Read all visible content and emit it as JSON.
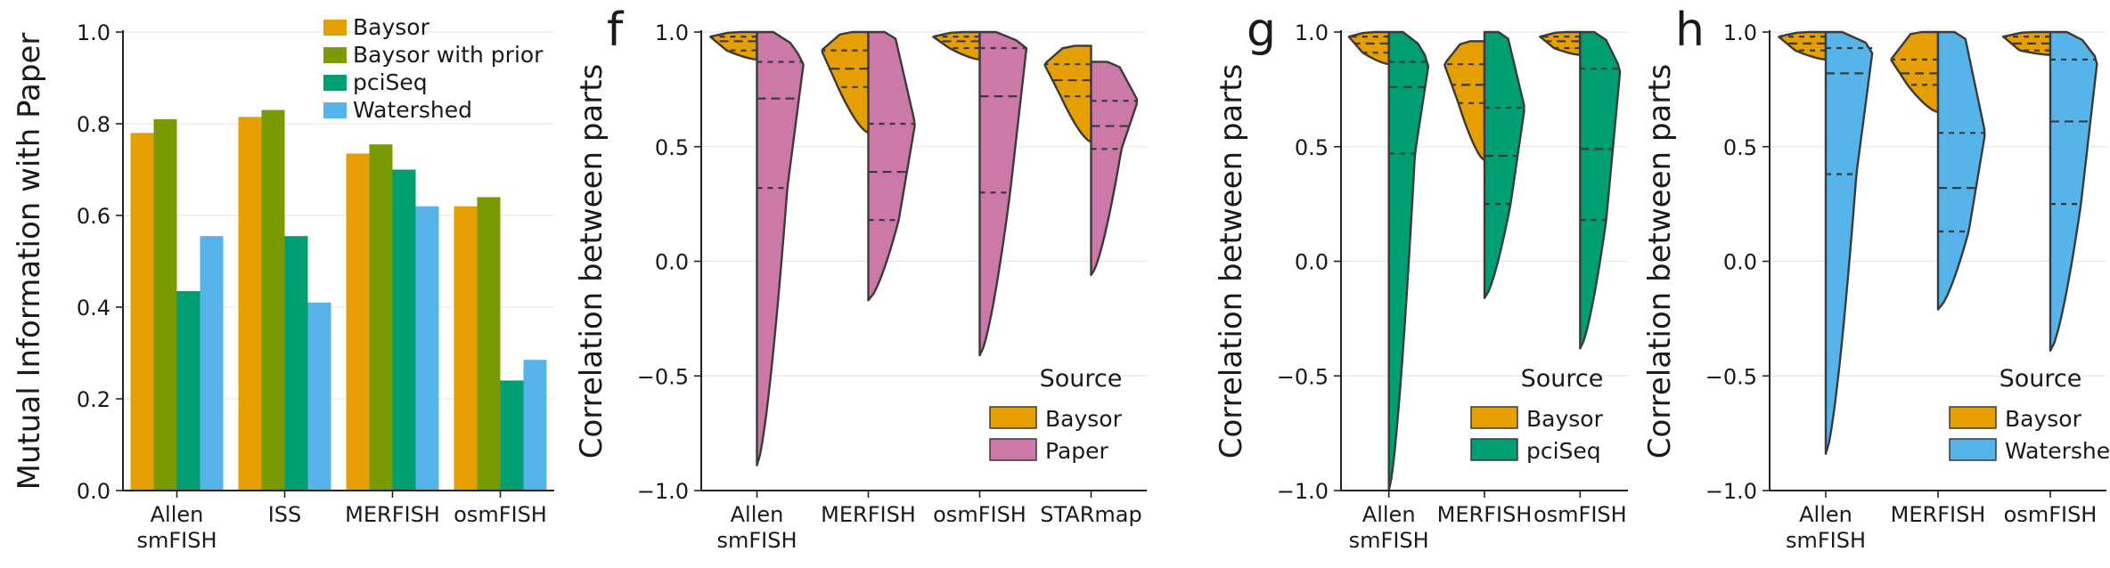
{
  "colors": {
    "Baysor": "#E69F00",
    "Baysor with prior": "#7A9A01",
    "pciSeq": "#009E73",
    "Watershed": "#56B4E9",
    "Paper": "#CC79A7",
    "grid": "#e6e6e6",
    "axis": "#222222",
    "violin_edge": "#3a3a3a"
  },
  "chart_data": [
    {
      "type": "bar",
      "panel_label": "",
      "ylabel": "Mutual Information with Paper",
      "ylim": [
        0,
        1.0
      ],
      "yticks": [
        0.0,
        0.2,
        0.4,
        0.6,
        0.8,
        1.0
      ],
      "ytick_labels": [
        "0.0",
        "0.2",
        "0.4",
        "0.6",
        "0.8",
        "1.0"
      ],
      "categories": [
        "Allen smFISH",
        "ISS",
        "MERFISH",
        "osmFISH"
      ],
      "category_labels": [
        [
          "Allen",
          "smFISH"
        ],
        [
          "ISS"
        ],
        [
          "MERFISH"
        ],
        [
          "osmFISH"
        ]
      ],
      "legend_location": "top-right",
      "series": [
        {
          "name": "Baysor",
          "values": [
            0.78,
            0.815,
            0.735,
            0.62
          ]
        },
        {
          "name": "Baysor with prior",
          "values": [
            0.81,
            0.83,
            0.755,
            0.64
          ]
        },
        {
          "name": "pciSeq",
          "values": [
            0.435,
            0.555,
            0.7,
            0.24
          ]
        },
        {
          "name": "Watershed",
          "values": [
            0.555,
            0.41,
            0.62,
            0.285
          ]
        }
      ]
    },
    {
      "type": "split-violin",
      "panel_label": "f",
      "ylabel": "Correlation between parts",
      "ylim": [
        -1.0,
        1.0
      ],
      "yticks": [
        -1.0,
        -0.5,
        0.0,
        0.5,
        1.0
      ],
      "ytick_labels": [
        "−1.0",
        "−0.5",
        "0.0",
        "0.5",
        "1.0"
      ],
      "categories": [
        "Allen smFISH",
        "MERFISH",
        "osmFISH",
        "STARmap"
      ],
      "category_labels": [
        [
          "Allen",
          "smFISH"
        ],
        [
          "MERFISH"
        ],
        [
          "osmFISH"
        ],
        [
          "STARmap"
        ]
      ],
      "legend_title": "Source",
      "legend_location": "bottom-right",
      "sources": [
        "Baysor",
        "Paper"
      ],
      "groups": [
        {
          "left": {
            "range": [
              0.88,
              1.0
            ],
            "quartiles": [
              0.92,
              0.96,
              0.98
            ]
          },
          "right": {
            "range": [
              -0.89,
              1.0
            ],
            "quartiles": [
              0.32,
              0.71,
              0.87
            ]
          }
        },
        {
          "left": {
            "range": [
              0.56,
              1.0
            ],
            "quartiles": [
              0.76,
              0.84,
              0.92
            ]
          },
          "right": {
            "range": [
              -0.17,
              1.0
            ],
            "quartiles": [
              0.18,
              0.39,
              0.6
            ]
          }
        },
        {
          "left": {
            "range": [
              0.88,
              1.0
            ],
            "quartiles": [
              0.93,
              0.96,
              0.98
            ]
          },
          "right": {
            "range": [
              -0.41,
              1.0
            ],
            "quartiles": [
              0.3,
              0.72,
              0.93
            ]
          }
        },
        {
          "left": {
            "range": [
              0.52,
              0.94
            ],
            "quartiles": [
              0.72,
              0.79,
              0.86
            ]
          },
          "right": {
            "range": [
              -0.06,
              0.87
            ],
            "quartiles": [
              0.49,
              0.59,
              0.7
            ]
          }
        }
      ]
    },
    {
      "type": "split-violin",
      "panel_label": "g",
      "ylabel": "Correlation between parts",
      "ylim": [
        -1.0,
        1.0
      ],
      "yticks": [
        -1.0,
        -0.5,
        0.0,
        0.5,
        1.0
      ],
      "ytick_labels": [
        "−1.0",
        "−0.5",
        "0.0",
        "0.5",
        "1.0"
      ],
      "categories": [
        "Allen smFISH",
        "MERFISH",
        "osmFISH"
      ],
      "category_labels": [
        [
          "Allen",
          "smFISH"
        ],
        [
          "MERFISH"
        ],
        [
          "osmFISH"
        ]
      ],
      "legend_title": "Source",
      "legend_location": "bottom-right",
      "sources": [
        "Baysor",
        "pciSeq"
      ],
      "groups": [
        {
          "left": {
            "range": [
              0.86,
              1.0
            ],
            "quartiles": [
              0.91,
              0.95,
              0.98
            ]
          },
          "right": {
            "range": [
              -1.0,
              1.0
            ],
            "quartiles": [
              0.47,
              0.76,
              0.87
            ]
          }
        },
        {
          "left": {
            "range": [
              0.44,
              0.96
            ],
            "quartiles": [
              0.69,
              0.77,
              0.86
            ]
          },
          "right": {
            "range": [
              -0.16,
              1.0
            ],
            "quartiles": [
              0.25,
              0.46,
              0.67
            ]
          }
        },
        {
          "left": {
            "range": [
              0.9,
              1.0
            ],
            "quartiles": [
              0.93,
              0.96,
              0.98
            ]
          },
          "right": {
            "range": [
              -0.38,
              1.0
            ],
            "quartiles": [
              0.18,
              0.49,
              0.84
            ]
          }
        }
      ]
    },
    {
      "type": "split-violin",
      "panel_label": "h",
      "ylabel": "Correlation between parts",
      "ylim": [
        -1.0,
        1.0
      ],
      "yticks": [
        -1.0,
        -0.5,
        0.0,
        0.5,
        1.0
      ],
      "ytick_labels": [
        "−1.0",
        "−0.5",
        "0.0",
        "0.5",
        "1.0"
      ],
      "categories": [
        "Allen smFISH",
        "MERFISH",
        "osmFISH"
      ],
      "category_labels": [
        [
          "Allen",
          "smFISH"
        ],
        [
          "MERFISH"
        ],
        [
          "osmFISH"
        ]
      ],
      "legend_title": "Source",
      "legend_location": "bottom-right",
      "sources": [
        "Baysor",
        "Watershed"
      ],
      "groups": [
        {
          "left": {
            "range": [
              0.88,
              1.0
            ],
            "quartiles": [
              0.92,
              0.95,
              0.98
            ]
          },
          "right": {
            "range": [
              -0.84,
              1.0
            ],
            "quartiles": [
              0.38,
              0.82,
              0.93
            ]
          }
        },
        {
          "left": {
            "range": [
              0.65,
              1.0
            ],
            "quartiles": [
              0.77,
              0.82,
              0.88
            ]
          },
          "right": {
            "range": [
              -0.21,
              1.0
            ],
            "quartiles": [
              0.13,
              0.32,
              0.56
            ]
          }
        },
        {
          "left": {
            "range": [
              0.9,
              1.0
            ],
            "quartiles": [
              0.92,
              0.95,
              0.98
            ]
          },
          "right": {
            "range": [
              -0.39,
              1.0
            ],
            "quartiles": [
              0.25,
              0.61,
              0.88
            ]
          }
        }
      ]
    }
  ]
}
